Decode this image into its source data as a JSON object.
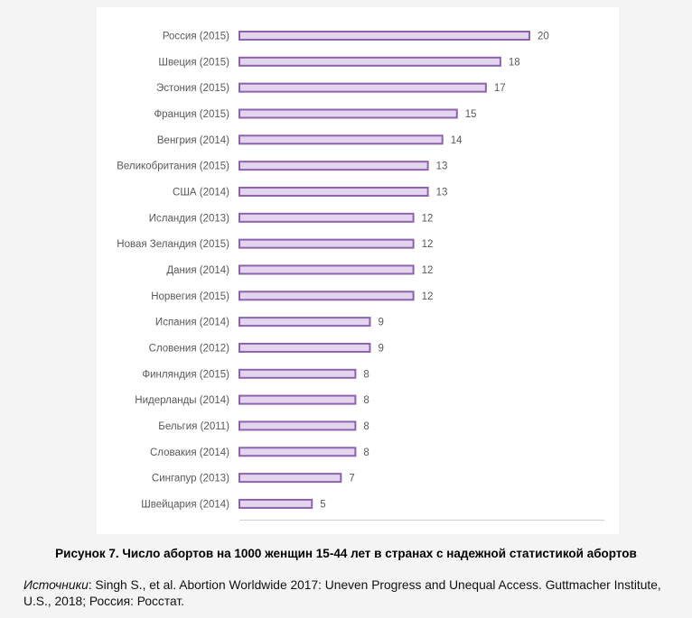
{
  "caption": "Рисунок 7. Число абортов на 1000 женщин 15-44 лет в странах с надежной статистикой абортов",
  "sources": {
    "label": "Источники",
    "text": ": Singh S., et al. Abortion Worldwide 2017: Uneven Progress and Unequal Access. Guttmacher Institute, U.S., 2018; Россия: Росстат."
  },
  "colors": {
    "bar_fill": "#e4d5ee",
    "bar_stroke": "#8e63ad",
    "label": "#595959",
    "axis": "#d0d0d0"
  },
  "chart_data": {
    "type": "bar",
    "orientation": "horizontal",
    "categories": [
      "Россия (2015)",
      "Швеция (2015)",
      "Эстония (2015)",
      "Франция (2015)",
      "Венгрия (2014)",
      "Великобритания (2015)",
      "США (2014)",
      "Исландия (2013)",
      "Новая Зеландия (2015)",
      "Дания (2014)",
      "Норвегия (2015)",
      "Испания (2014)",
      "Словения (2012)",
      "Финляндия (2015)",
      "Нидерланды (2014)",
      "Бельгия (2011)",
      "Словакия (2014)",
      "Сингапур (2013)",
      "Швейцария (2014)"
    ],
    "values": [
      20,
      18,
      17,
      15,
      14,
      13,
      13,
      12,
      12,
      12,
      12,
      9,
      9,
      8,
      8,
      8,
      8,
      7,
      5
    ],
    "xlim": [
      0,
      20
    ],
    "data_labels": true,
    "grid": false
  }
}
